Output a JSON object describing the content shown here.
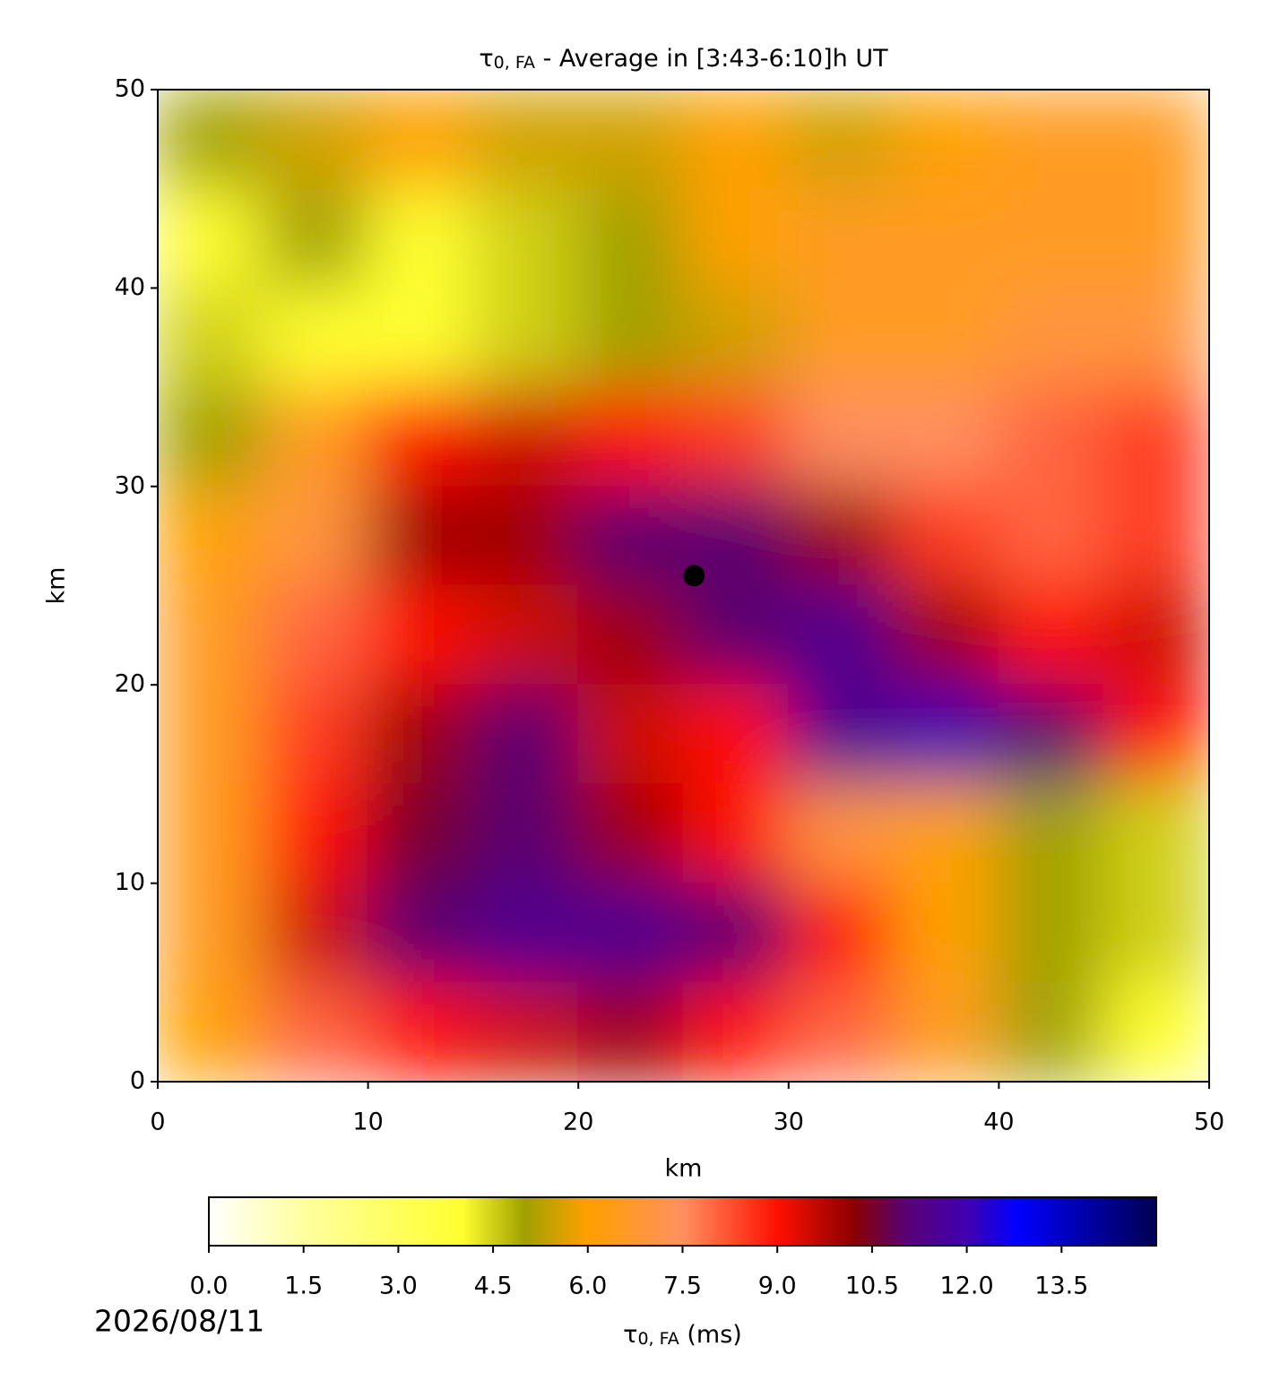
{
  "chart_data": {
    "type": "heatmap",
    "title": {
      "symbol": "τ",
      "subscript": "0, FA",
      "text": " - Average in [3:43-6:10]h UT"
    },
    "x_label": "km",
    "y_label": "km",
    "x": [
      2.5,
      7.5,
      12.5,
      17.5,
      22.5,
      27.5,
      32.5,
      37.5,
      42.5,
      47.5
    ],
    "y": [
      47.5,
      42.5,
      37.5,
      32.5,
      27.5,
      22.5,
      17.5,
      12.5,
      7.5,
      2.5
    ],
    "z": [
      [
        5,
        5.5,
        6,
        5.5,
        5.5,
        6,
        5.5,
        6,
        6.5,
        6.5
      ],
      [
        4,
        5,
        4,
        4.5,
        5,
        6,
        6.5,
        6.5,
        6.5,
        6.5
      ],
      [
        4.5,
        4,
        4,
        4.5,
        5,
        5.5,
        6.5,
        6.5,
        7,
        7
      ],
      [
        5,
        6.5,
        9,
        9.5,
        9,
        8.5,
        7.5,
        7.5,
        8,
        8.5
      ],
      [
        6,
        7,
        10,
        10,
        11,
        11,
        10,
        8.5,
        8,
        8.5
      ],
      [
        6.5,
        8,
        9,
        9.5,
        10,
        11,
        11.5,
        10,
        9,
        9.5
      ],
      [
        6.5,
        8.5,
        10,
        11,
        9.5,
        9,
        11.5,
        12,
        11,
        9
      ],
      [
        6.5,
        9,
        10.5,
        11,
        10,
        9,
        7,
        6,
        5,
        4.5
      ],
      [
        6.5,
        9.5,
        11,
        11.5,
        11.5,
        11,
        9,
        6,
        5,
        4.5
      ],
      [
        6,
        8,
        9,
        9.5,
        10,
        9,
        8,
        6.5,
        5,
        4
      ]
    ],
    "xlim": [
      0,
      50
    ],
    "ylim": [
      0,
      50
    ],
    "xticks": [
      0,
      10,
      20,
      30,
      40,
      50
    ],
    "yticks": [
      0,
      10,
      20,
      30,
      40,
      50
    ],
    "point": {
      "x": 25.5,
      "y": 25.5,
      "color": "#000000"
    },
    "colormap": [
      [
        0,
        "#ffffff"
      ],
      [
        1.5,
        "#ffffa0"
      ],
      [
        4,
        "#ffff30"
      ],
      [
        5,
        "#a0a000"
      ],
      [
        6,
        "#ffa000"
      ],
      [
        7.5,
        "#ff9060"
      ],
      [
        9,
        "#ff1000"
      ],
      [
        10.2,
        "#8b0000"
      ],
      [
        11,
        "#5a0070"
      ],
      [
        12,
        "#4000b0"
      ],
      [
        12.8,
        "#0000ff"
      ],
      [
        15,
        "#000050"
      ]
    ],
    "colorbar": {
      "label": {
        "symbol": "τ",
        "subscript": "0, FA",
        "text": " (ms)"
      },
      "clim": [
        0,
        15
      ],
      "ticks": [
        {
          "value": 0,
          "label": "0.0"
        },
        {
          "value": 1.5,
          "label": "1.5"
        },
        {
          "value": 3,
          "label": "3.0"
        },
        {
          "value": 4.5,
          "label": "4.5"
        },
        {
          "value": 6,
          "label": "6.0"
        },
        {
          "value": 7.5,
          "label": "7.5"
        },
        {
          "value": 9,
          "label": "9.0"
        },
        {
          "value": 10.5,
          "label": "10.5"
        },
        {
          "value": 12,
          "label": "12.0"
        },
        {
          "value": 13.5,
          "label": "13.5"
        }
      ]
    },
    "date": "2026/08/11"
  }
}
